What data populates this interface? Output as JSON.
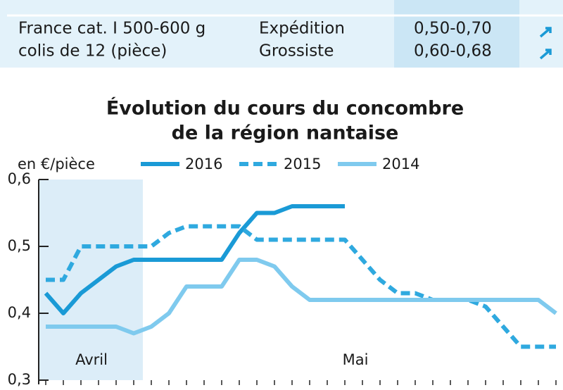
{
  "table": {
    "rows": [
      [
        "France cat. I 500-600 g",
        "Expédition",
        "0,50-0,70"
      ],
      [
        "colis de 12 (pièce)",
        "Grossiste",
        "0,60-0,68"
      ]
    ]
  },
  "chart_data": {
    "type": "line",
    "title": [
      "Évolution du cours du concombre",
      "de la région nantaise"
    ],
    "y_label": "en €/pièce",
    "categories": [
      null,
      null,
      null,
      null,
      null,
      null,
      null,
      null,
      null,
      null,
      null,
      null,
      null,
      null,
      null,
      null,
      null,
      null,
      null,
      null,
      null,
      null,
      null,
      null,
      null,
      null,
      null,
      null,
      null,
      null
    ],
    "annotations": [
      "Avril",
      "Mai"
    ],
    "series": [
      {
        "name": "2016",
        "color": "#1a9ad6",
        "dashed": false,
        "values": [
          0.43,
          0.4,
          0.43,
          0.45,
          0.47,
          0.48,
          0.48,
          0.48,
          0.48,
          0.48,
          0.48,
          0.52,
          0.55,
          0.55,
          0.56,
          0.56,
          0.56,
          0.56,
          null,
          null,
          null,
          null,
          null,
          null,
          null,
          null,
          null,
          null,
          null,
          null
        ]
      },
      {
        "name": "2015",
        "color": "#2fa9df",
        "dashed": true,
        "values": [
          0.45,
          0.45,
          0.5,
          0.5,
          0.5,
          0.5,
          0.5,
          0.52,
          0.53,
          0.53,
          0.53,
          0.53,
          0.51,
          0.51,
          0.51,
          0.51,
          0.51,
          0.51,
          0.48,
          0.45,
          0.43,
          0.43,
          0.42,
          0.42,
          0.42,
          0.41,
          0.38,
          0.35,
          0.35,
          0.35
        ]
      },
      {
        "name": "2014",
        "color": "#7fcaee",
        "dashed": false,
        "values": [
          0.38,
          0.38,
          0.38,
          0.38,
          0.38,
          0.37,
          0.38,
          0.4,
          0.44,
          0.44,
          0.44,
          0.48,
          0.48,
          0.47,
          0.44,
          0.42,
          0.42,
          0.42,
          0.42,
          0.42,
          0.42,
          0.42,
          0.42,
          0.42,
          0.42,
          0.42,
          0.42,
          0.42,
          0.42,
          0.4
        ]
      }
    ],
    "ylim": [
      0.3,
      0.6
    ],
    "yticks": [
      {
        "value": 0.3,
        "label": "0,3"
      },
      {
        "value": 0.4,
        "label": "0,4"
      },
      {
        "value": 0.5,
        "label": "0,5"
      },
      {
        "value": 0.6,
        "label": "0,6"
      }
    ]
  }
}
